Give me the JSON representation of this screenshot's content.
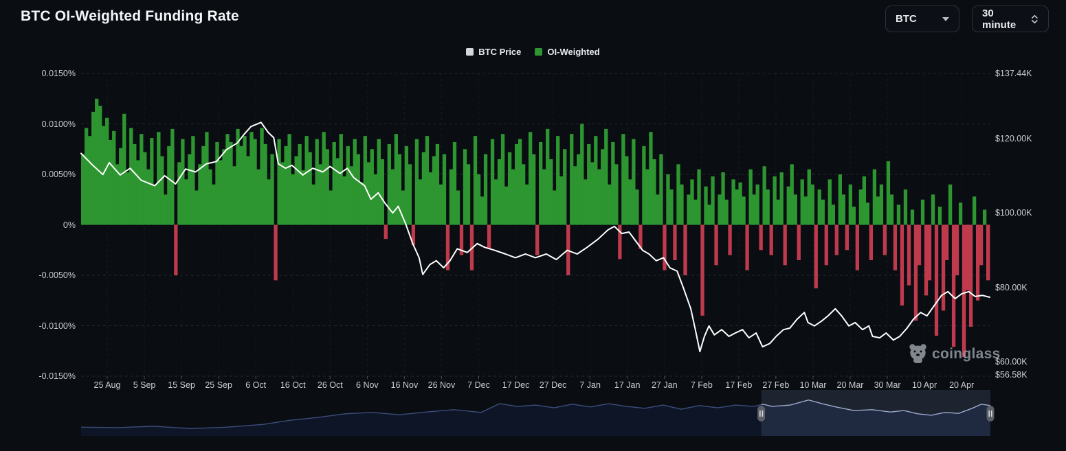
{
  "header": {
    "title": "BTC OI-Weighted Funding Rate"
  },
  "controls": {
    "symbol_select": {
      "value": "BTC"
    },
    "interval_select": {
      "value": "30 minute"
    }
  },
  "legend": [
    {
      "label": "BTC Price",
      "color": "#d3d7db"
    },
    {
      "label": "OI-Weighted",
      "color": "#2d9630"
    }
  ],
  "watermark": {
    "text": "coinglass"
  },
  "theme": {
    "background": "#0a0e13",
    "green": "#2d9630",
    "red": "#bf3a4d",
    "price_line": "#ffffff",
    "grid": "rgba(255,255,255,0.11)",
    "grid_vertical": "rgba(255,255,255,0.05)",
    "axis_text": "#c9ccd1",
    "nav_line_dim": "#3d4d7c",
    "nav_line_bright": "#9dabce",
    "nav_fill": "#0d1526",
    "selection_fill": "rgba(130,150,200,0.16)",
    "handle_fill": "#5a5f68",
    "handle_grip": "#d7dade"
  },
  "chart_data": {
    "type": "mixed",
    "title": "BTC OI-Weighted Funding Rate",
    "left_axis": {
      "title": "Funding Rate",
      "labels": [
        "0.0150%",
        "0.0100%",
        "0.0050%",
        "0%",
        "-0.0050%",
        "-0.0100%",
        "-0.0150%"
      ],
      "values_pct": [
        0.015,
        0.01,
        0.005,
        0,
        -0.005,
        -0.01,
        -0.015
      ]
    },
    "right_axis": {
      "title": "BTC Price",
      "labels": [
        "$137.44K",
        "$120.00K",
        "$100.00K",
        "$80.00K",
        "$60.00K",
        "$56.58K"
      ],
      "values_k": [
        137.44,
        120,
        100,
        80,
        60,
        56.58
      ],
      "min_k": 56.58,
      "max_k": 137.44
    },
    "x_axis": {
      "labels": [
        "25 Aug",
        "5 Sep",
        "15 Sep",
        "25 Sep",
        "6 Oct",
        "16 Oct",
        "26 Oct",
        "6 Nov",
        "16 Nov",
        "26 Nov",
        "7 Dec",
        "17 Dec",
        "27 Dec",
        "7 Jan",
        "17 Jan",
        "27 Jan",
        "7 Feb",
        "17 Feb",
        "27 Feb",
        "10 Mar",
        "20 Mar",
        "30 Mar",
        "10 Apr",
        "20 Apr"
      ]
    },
    "series": [
      {
        "name": "OI-Weighted",
        "type": "bar",
        "unit": "percent, stored as 1e-4 %",
        "values": [
          70,
          96,
          88,
          112,
          125,
          118,
          98,
          106,
          84,
          93,
          60,
          76,
          110,
          52,
          96,
          80,
          64,
          90,
          72,
          55,
          86,
          40,
          92,
          68,
          30,
          78,
          95,
          -50,
          62,
          85,
          45,
          70,
          88,
          34,
          60,
          78,
          92,
          55,
          40,
          82,
          64,
          75,
          90,
          82,
          58,
          95,
          78,
          88,
          68,
          92,
          85,
          55,
          96,
          80,
          45,
          70,
          -55,
          85,
          62,
          78,
          90,
          50,
          68,
          80,
          54,
          88,
          72,
          40,
          85,
          60,
          92,
          75,
          34,
          82,
          66,
          90,
          48,
          78,
          58,
          85,
          70,
          42,
          88,
          62,
          75,
          50,
          85,
          65,
          -14,
          80,
          55,
          90,
          70,
          34,
          78,
          60,
          -20,
          85,
          45,
          72,
          88,
          52,
          68,
          80,
          40,
          70,
          -45,
          55,
          82,
          34,
          -30,
          75,
          60,
          -45,
          88,
          50,
          28,
          70,
          -24,
          85,
          45,
          65,
          90,
          38,
          72,
          55,
          80,
          85,
          60,
          40,
          92,
          70,
          -30,
          82,
          55,
          95,
          65,
          34,
          88,
          48,
          75,
          -50,
          90,
          58,
          70,
          100,
          45,
          80,
          62,
          88,
          55,
          75,
          95,
          40,
          82,
          60,
          -34,
          90,
          68,
          45,
          85,
          35,
          -24,
          78,
          55,
          92,
          65,
          30,
          70,
          -45,
          50,
          35,
          -35,
          60,
          40,
          -50,
          30,
          45,
          25,
          55,
          -90,
          38,
          20,
          48,
          -40,
          30,
          52,
          25,
          -30,
          45,
          35,
          42,
          28,
          -45,
          55,
          30,
          40,
          -25,
          58,
          35,
          -30,
          48,
          25,
          52,
          -40,
          38,
          60,
          30,
          -35,
          45,
          28,
          55,
          40,
          -63,
          35,
          25,
          -40,
          45,
          20,
          -30,
          50,
          30,
          -25,
          40,
          18,
          -45,
          35,
          48,
          22,
          -35,
          55,
          28,
          40,
          -30,
          63,
          30,
          -45,
          20,
          -80,
          35,
          -60,
          15,
          -95,
          -40,
          25,
          -70,
          -55,
          30,
          -110,
          18,
          -85,
          -35,
          40,
          -121,
          -50,
          22,
          -131,
          -65,
          -101,
          28,
          -75,
          -40,
          15,
          -55
        ]
      },
      {
        "name": "BTC Price",
        "type": "line",
        "unit": "$K, points are [x_fraction, price_k]",
        "points": [
          [
            0,
            116
          ],
          [
            0.012,
            113
          ],
          [
            0.024,
            110.3
          ],
          [
            0.031,
            113.5
          ],
          [
            0.043,
            110.2
          ],
          [
            0.054,
            112
          ],
          [
            0.066,
            108.8
          ],
          [
            0.081,
            107.3
          ],
          [
            0.092,
            110
          ],
          [
            0.104,
            107.8
          ],
          [
            0.115,
            111.8
          ],
          [
            0.126,
            111
          ],
          [
            0.138,
            113.2
          ],
          [
            0.149,
            113.8
          ],
          [
            0.16,
            117
          ],
          [
            0.172,
            118.8
          ],
          [
            0.179,
            121
          ],
          [
            0.187,
            123.2
          ],
          [
            0.198,
            124.3
          ],
          [
            0.206,
            121.6
          ],
          [
            0.212,
            120.2
          ],
          [
            0.217,
            113.2
          ],
          [
            0.225,
            112
          ],
          [
            0.232,
            112.8
          ],
          [
            0.244,
            110.2
          ],
          [
            0.255,
            112
          ],
          [
            0.266,
            111
          ],
          [
            0.274,
            112.5
          ],
          [
            0.285,
            110.6
          ],
          [
            0.293,
            112
          ],
          [
            0.3,
            109.5
          ],
          [
            0.312,
            107.3
          ],
          [
            0.319,
            103.7
          ],
          [
            0.327,
            105.4
          ],
          [
            0.334,
            102.8
          ],
          [
            0.343,
            100
          ],
          [
            0.349,
            101.8
          ],
          [
            0.357,
            97.2
          ],
          [
            0.365,
            91.8
          ],
          [
            0.372,
            88
          ],
          [
            0.376,
            83.5
          ],
          [
            0.384,
            86.2
          ],
          [
            0.391,
            87.2
          ],
          [
            0.399,
            85.3
          ],
          [
            0.406,
            87.2
          ],
          [
            0.414,
            90.4
          ],
          [
            0.425,
            89.4
          ],
          [
            0.436,
            91.8
          ],
          [
            0.444,
            90.8
          ],
          [
            0.455,
            90
          ],
          [
            0.467,
            89
          ],
          [
            0.478,
            88
          ],
          [
            0.489,
            89
          ],
          [
            0.5,
            88
          ],
          [
            0.512,
            89
          ],
          [
            0.523,
            87.5
          ],
          [
            0.535,
            90
          ],
          [
            0.546,
            89
          ],
          [
            0.557,
            90.8
          ],
          [
            0.569,
            93
          ],
          [
            0.58,
            95.5
          ],
          [
            0.587,
            96.4
          ],
          [
            0.595,
            94.5
          ],
          [
            0.603,
            94.9
          ],
          [
            0.61,
            92.6
          ],
          [
            0.618,
            90
          ],
          [
            0.625,
            89
          ],
          [
            0.633,
            87.2
          ],
          [
            0.641,
            88
          ],
          [
            0.648,
            85.3
          ],
          [
            0.656,
            84.4
          ],
          [
            0.663,
            79.8
          ],
          [
            0.671,
            74.3
          ],
          [
            0.676,
            68.7
          ],
          [
            0.681,
            62.8
          ],
          [
            0.686,
            66.9
          ],
          [
            0.691,
            69.7
          ],
          [
            0.697,
            67.3
          ],
          [
            0.705,
            68.7
          ],
          [
            0.713,
            66.9
          ],
          [
            0.72,
            67.8
          ],
          [
            0.728,
            68.7
          ],
          [
            0.735,
            66.5
          ],
          [
            0.743,
            67.8
          ],
          [
            0.75,
            64.1
          ],
          [
            0.758,
            65
          ],
          [
            0.765,
            66.9
          ],
          [
            0.773,
            68.7
          ],
          [
            0.78,
            69.1
          ],
          [
            0.788,
            71.5
          ],
          [
            0.796,
            73.3
          ],
          [
            0.8,
            70.6
          ],
          [
            0.807,
            69.7
          ],
          [
            0.815,
            71
          ],
          [
            0.822,
            72.4
          ],
          [
            0.83,
            74.3
          ],
          [
            0.837,
            72.4
          ],
          [
            0.845,
            69.7
          ],
          [
            0.852,
            70.6
          ],
          [
            0.86,
            68.7
          ],
          [
            0.867,
            69.7
          ],
          [
            0.871,
            66.9
          ],
          [
            0.879,
            66.5
          ],
          [
            0.886,
            67.8
          ],
          [
            0.894,
            65.9
          ],
          [
            0.901,
            66.9
          ],
          [
            0.909,
            69.1
          ],
          [
            0.916,
            71.5
          ],
          [
            0.924,
            73.3
          ],
          [
            0.931,
            72.4
          ],
          [
            0.939,
            75.2
          ],
          [
            0.947,
            77.9
          ],
          [
            0.954,
            78.9
          ],
          [
            0.962,
            77
          ],
          [
            0.969,
            78.3
          ],
          [
            0.977,
            78.9
          ],
          [
            0.984,
            77.6
          ],
          [
            0.992,
            77.9
          ],
          [
            1,
            77.4
          ]
        ]
      }
    ],
    "navigator": {
      "selection_start_frac": 0.748,
      "selection_end_frac": 1.0,
      "points": [
        [
          0,
          0.81
        ],
        [
          0.04,
          0.82
        ],
        [
          0.08,
          0.79
        ],
        [
          0.12,
          0.84
        ],
        [
          0.16,
          0.81
        ],
        [
          0.2,
          0.75
        ],
        [
          0.23,
          0.66
        ],
        [
          0.26,
          0.6
        ],
        [
          0.29,
          0.52
        ],
        [
          0.32,
          0.49
        ],
        [
          0.35,
          0.54
        ],
        [
          0.38,
          0.48
        ],
        [
          0.41,
          0.43
        ],
        [
          0.44,
          0.49
        ],
        [
          0.46,
          0.3
        ],
        [
          0.48,
          0.36
        ],
        [
          0.5,
          0.33
        ],
        [
          0.52,
          0.39
        ],
        [
          0.54,
          0.31
        ],
        [
          0.56,
          0.37
        ],
        [
          0.58,
          0.3
        ],
        [
          0.6,
          0.36
        ],
        [
          0.62,
          0.4
        ],
        [
          0.64,
          0.33
        ],
        [
          0.66,
          0.42
        ],
        [
          0.68,
          0.34
        ],
        [
          0.7,
          0.39
        ],
        [
          0.72,
          0.33
        ],
        [
          0.74,
          0.36
        ],
        [
          0.75,
          0.31
        ],
        [
          0.76,
          0.36
        ],
        [
          0.78,
          0.33
        ],
        [
          0.8,
          0.22
        ],
        [
          0.815,
          0.3
        ],
        [
          0.83,
          0.37
        ],
        [
          0.85,
          0.45
        ],
        [
          0.87,
          0.43
        ],
        [
          0.89,
          0.48
        ],
        [
          0.905,
          0.45
        ],
        [
          0.92,
          0.52
        ],
        [
          0.935,
          0.55
        ],
        [
          0.95,
          0.49
        ],
        [
          0.965,
          0.51
        ],
        [
          0.98,
          0.4
        ],
        [
          0.99,
          0.31
        ],
        [
          1,
          0.34
        ]
      ]
    }
  }
}
